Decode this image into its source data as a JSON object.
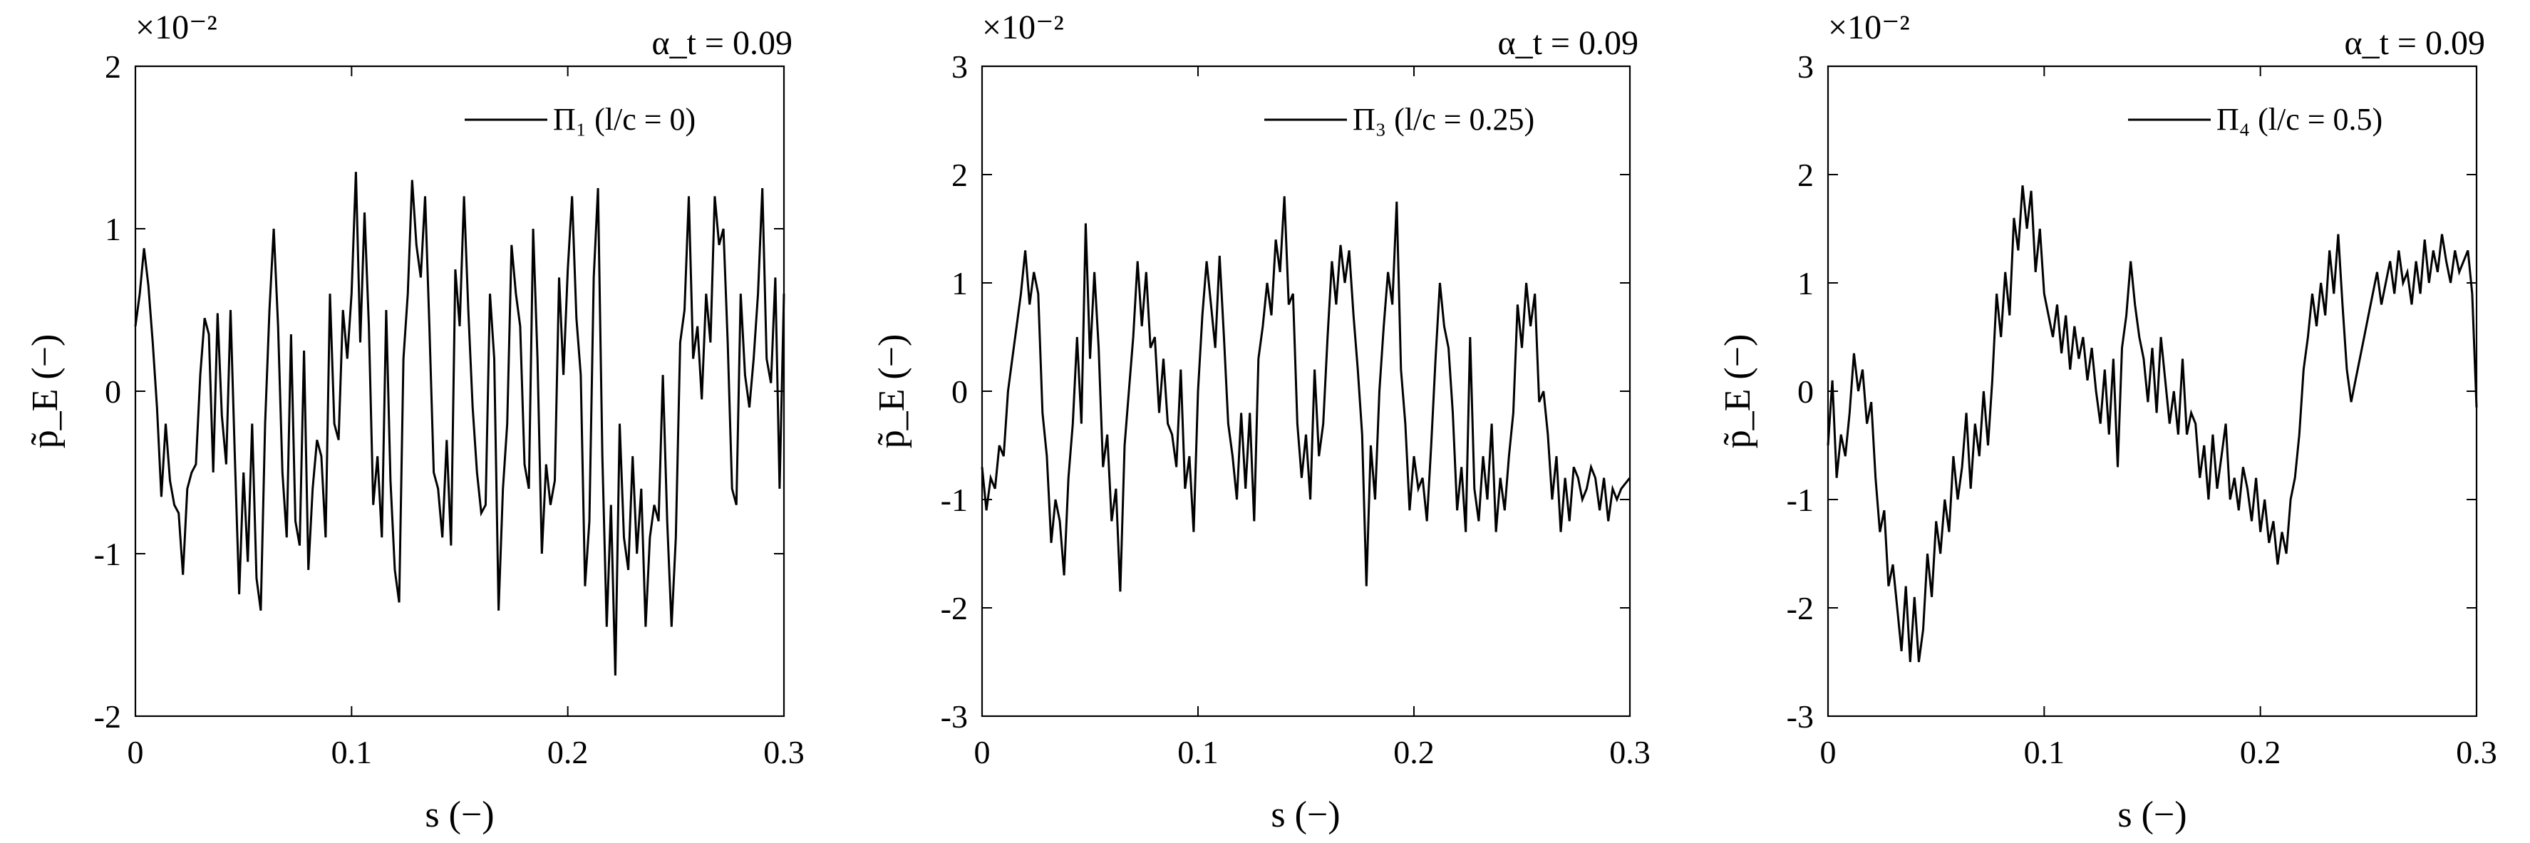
{
  "chart_data": [
    {
      "type": "line",
      "annotation": "α_t = 0.09",
      "exponent_label": "×10⁻²",
      "xlabel": "s (−)",
      "ylabel": "p̃_E (−)",
      "xlim": [
        0,
        0.3
      ],
      "ylim": [
        -2,
        2
      ],
      "xticks": [
        0,
        0.1,
        0.2,
        0.3
      ],
      "xtick_labels": [
        "0",
        "0.1",
        "0.2",
        "0.3"
      ],
      "yticks": [
        -2,
        -1,
        0,
        1,
        2
      ],
      "ytick_labels": [
        "-2",
        "-1",
        "0",
        "1",
        "2"
      ],
      "grid": false,
      "legend_position": "top-right",
      "series": [
        {
          "name": "Π₁ (l/c = 0)",
          "color": "#000000",
          "x": [
            0.0,
            0.002,
            0.004,
            0.006,
            0.008,
            0.01,
            0.012,
            0.014,
            0.016,
            0.018,
            0.02,
            0.022,
            0.024,
            0.026,
            0.028,
            0.03,
            0.032,
            0.034,
            0.036,
            0.038,
            0.04,
            0.042,
            0.044,
            0.046,
            0.048,
            0.05,
            0.052,
            0.054,
            0.056,
            0.058,
            0.06,
            0.062,
            0.064,
            0.066,
            0.068,
            0.07,
            0.072,
            0.074,
            0.076,
            0.078,
            0.08,
            0.082,
            0.084,
            0.086,
            0.088,
            0.09,
            0.092,
            0.094,
            0.096,
            0.098,
            0.1,
            0.102,
            0.104,
            0.106,
            0.108,
            0.11,
            0.112,
            0.114,
            0.116,
            0.118,
            0.12,
            0.122,
            0.124,
            0.126,
            0.128,
            0.13,
            0.132,
            0.134,
            0.136,
            0.138,
            0.14,
            0.142,
            0.144,
            0.146,
            0.148,
            0.15,
            0.152,
            0.154,
            0.156,
            0.158,
            0.16,
            0.162,
            0.164,
            0.166,
            0.168,
            0.17,
            0.172,
            0.174,
            0.176,
            0.178,
            0.18,
            0.182,
            0.184,
            0.186,
            0.188,
            0.19,
            0.192,
            0.194,
            0.196,
            0.198,
            0.2,
            0.202,
            0.204,
            0.206,
            0.208,
            0.21,
            0.212,
            0.214,
            0.216,
            0.218,
            0.22,
            0.222,
            0.224,
            0.226,
            0.228,
            0.23,
            0.232,
            0.234,
            0.236,
            0.238,
            0.24,
            0.242,
            0.244,
            0.246,
            0.248,
            0.25,
            0.252,
            0.254,
            0.256,
            0.258,
            0.26,
            0.262,
            0.264,
            0.266,
            0.268,
            0.27,
            0.272,
            0.274,
            0.276,
            0.278,
            0.28,
            0.282,
            0.284,
            0.286,
            0.288,
            0.29,
            0.292,
            0.294,
            0.296,
            0.298,
            0.3
          ],
          "y": [
            0.4,
            0.6,
            0.88,
            0.65,
            0.3,
            -0.1,
            -0.65,
            -0.2,
            -0.55,
            -0.7,
            -0.75,
            -1.13,
            -0.6,
            -0.5,
            -0.45,
            0.1,
            0.45,
            0.35,
            -0.5,
            0.48,
            -0.15,
            -0.45,
            0.5,
            -0.4,
            -1.25,
            -0.5,
            -1.05,
            -0.2,
            -1.15,
            -1.35,
            -0.2,
            0.5,
            1.0,
            0.4,
            -0.5,
            -0.9,
            0.35,
            -0.8,
            -0.95,
            0.25,
            -1.1,
            -0.6,
            -0.3,
            -0.4,
            -0.9,
            0.6,
            -0.2,
            -0.3,
            0.5,
            0.2,
            0.6,
            1.35,
            0.3,
            1.1,
            0.4,
            -0.7,
            -0.4,
            -0.9,
            0.5,
            -0.55,
            -1.1,
            -1.3,
            0.2,
            0.6,
            1.3,
            0.9,
            0.7,
            1.2,
            0.4,
            -0.5,
            -0.6,
            -0.9,
            -0.3,
            -0.95,
            0.75,
            0.4,
            1.2,
            0.5,
            -0.1,
            -0.5,
            -0.75,
            -0.7,
            0.6,
            0.2,
            -1.35,
            -0.6,
            -0.2,
            0.9,
            0.6,
            0.4,
            -0.45,
            -0.6,
            1.0,
            0.2,
            -1.0,
            -0.45,
            -0.7,
            -0.55,
            0.7,
            0.1,
            0.75,
            1.2,
            0.45,
            0.1,
            -1.2,
            -0.8,
            0.7,
            1.25,
            -0.4,
            -1.45,
            -0.7,
            -1.75,
            -0.2,
            -0.9,
            -1.1,
            -0.4,
            -1.0,
            -0.6,
            -1.45,
            -0.9,
            -0.7,
            -0.8,
            0.1,
            -0.8,
            -1.45,
            -0.9,
            0.3,
            0.5,
            1.2,
            0.2,
            0.4,
            -0.05,
            0.6,
            0.3,
            1.2,
            0.9,
            1.0,
            0.3,
            -0.6,
            -0.7,
            0.6,
            0.1,
            -0.1,
            0.2,
            0.6,
            1.25,
            0.2,
            0.05,
            0.7,
            -0.6,
            0.6
          ],
          "y_scale": 0.01
        }
      ]
    },
    {
      "type": "line",
      "annotation": "α_t = 0.09",
      "exponent_label": "×10⁻²",
      "xlabel": "s (−)",
      "ylabel": "p̃_E (−)",
      "xlim": [
        0,
        0.3
      ],
      "ylim": [
        -3,
        3
      ],
      "xticks": [
        0,
        0.1,
        0.2,
        0.3
      ],
      "xtick_labels": [
        "0",
        "0.1",
        "0.2",
        "0.3"
      ],
      "yticks": [
        -3,
        -2,
        -1,
        0,
        1,
        2,
        3
      ],
      "ytick_labels": [
        "-3",
        "-2",
        "-1",
        "0",
        "1",
        "2",
        "3"
      ],
      "grid": false,
      "legend_position": "top-right",
      "series": [
        {
          "name": "Π₃ (l/c = 0.25)",
          "color": "#000000",
          "x": [
            0.0,
            0.002,
            0.004,
            0.006,
            0.008,
            0.01,
            0.012,
            0.014,
            0.016,
            0.018,
            0.02,
            0.022,
            0.024,
            0.026,
            0.028,
            0.03,
            0.032,
            0.034,
            0.036,
            0.038,
            0.04,
            0.042,
            0.044,
            0.046,
            0.048,
            0.05,
            0.052,
            0.054,
            0.056,
            0.058,
            0.06,
            0.062,
            0.064,
            0.066,
            0.068,
            0.07,
            0.072,
            0.074,
            0.076,
            0.078,
            0.08,
            0.082,
            0.084,
            0.086,
            0.088,
            0.09,
            0.092,
            0.094,
            0.096,
            0.098,
            0.1,
            0.102,
            0.104,
            0.106,
            0.108,
            0.11,
            0.112,
            0.114,
            0.116,
            0.118,
            0.12,
            0.122,
            0.124,
            0.126,
            0.128,
            0.13,
            0.132,
            0.134,
            0.136,
            0.138,
            0.14,
            0.142,
            0.144,
            0.146,
            0.148,
            0.15,
            0.152,
            0.154,
            0.156,
            0.158,
            0.16,
            0.162,
            0.164,
            0.166,
            0.168,
            0.17,
            0.172,
            0.174,
            0.176,
            0.178,
            0.18,
            0.182,
            0.184,
            0.186,
            0.188,
            0.19,
            0.192,
            0.194,
            0.196,
            0.198,
            0.2,
            0.202,
            0.204,
            0.206,
            0.208,
            0.21,
            0.212,
            0.214,
            0.216,
            0.218,
            0.22,
            0.222,
            0.224,
            0.226,
            0.228,
            0.23,
            0.232,
            0.234,
            0.236,
            0.238,
            0.24,
            0.242,
            0.244,
            0.246,
            0.248,
            0.25,
            0.252,
            0.254,
            0.256,
            0.258,
            0.26,
            0.262,
            0.264,
            0.266,
            0.268,
            0.27,
            0.272,
            0.274,
            0.276,
            0.278,
            0.28,
            0.282,
            0.284,
            0.286,
            0.288,
            0.29,
            0.292,
            0.294,
            0.296,
            0.298,
            0.3
          ],
          "y": [
            -0.7,
            -1.1,
            -0.8,
            -0.9,
            -0.5,
            -0.6,
            0.0,
            0.3,
            0.6,
            0.9,
            1.3,
            0.8,
            1.1,
            0.9,
            -0.2,
            -0.6,
            -1.4,
            -1.0,
            -1.2,
            -1.7,
            -0.8,
            -0.3,
            0.5,
            -0.3,
            1.55,
            0.3,
            1.1,
            0.4,
            -0.7,
            -0.4,
            -1.2,
            -0.9,
            -1.85,
            -0.5,
            0.0,
            0.5,
            1.2,
            0.6,
            1.1,
            0.4,
            0.5,
            -0.2,
            0.3,
            -0.3,
            -0.4,
            -0.7,
            0.2,
            -0.9,
            -0.6,
            -1.3,
            0.0,
            0.7,
            1.2,
            0.8,
            0.4,
            1.25,
            0.5,
            -0.3,
            -0.6,
            -1.0,
            -0.2,
            -0.9,
            -0.2,
            -1.2,
            0.3,
            0.6,
            1.0,
            0.7,
            1.4,
            1.1,
            1.8,
            0.8,
            0.9,
            -0.3,
            -0.8,
            -0.4,
            -1.0,
            0.2,
            -0.6,
            -0.3,
            0.5,
            1.2,
            0.8,
            1.35,
            1.0,
            1.3,
            0.7,
            0.2,
            -0.4,
            -1.8,
            -0.5,
            -1.0,
            0.0,
            0.6,
            1.1,
            0.8,
            1.75,
            0.2,
            -0.3,
            -1.1,
            -0.6,
            -0.9,
            -0.8,
            -1.2,
            -0.5,
            0.3,
            1.0,
            0.6,
            0.4,
            -0.2,
            -1.1,
            -0.7,
            -1.3,
            0.5,
            -0.9,
            -1.2,
            -0.6,
            -1.0,
            -0.3,
            -1.3,
            -0.8,
            -1.1,
            -0.6,
            -0.2,
            0.8,
            0.4,
            1.0,
            0.6,
            0.9,
            -0.1,
            0.0,
            -0.4,
            -1.0,
            -0.6,
            -1.3,
            -0.8,
            -1.2,
            -0.7,
            -0.8,
            -1.0,
            -0.9,
            -0.7,
            -0.8,
            -1.1,
            -0.8,
            -1.2,
            -0.9,
            -1.0,
            -0.9,
            -0.85,
            -0.8
          ],
          "y_scale": 0.01
        }
      ]
    },
    {
      "type": "line",
      "annotation": "α_t = 0.09",
      "exponent_label": "×10⁻²",
      "xlabel": "s (−)",
      "ylabel": "p̃_E (−)",
      "xlim": [
        0,
        0.3
      ],
      "ylim": [
        -3,
        3
      ],
      "xticks": [
        0,
        0.1,
        0.2,
        0.3
      ],
      "xtick_labels": [
        "0",
        "0.1",
        "0.2",
        "0.3"
      ],
      "yticks": [
        -3,
        -2,
        -1,
        0,
        1,
        2,
        3
      ],
      "ytick_labels": [
        "-3",
        "-2",
        "-1",
        "0",
        "1",
        "2",
        "3"
      ],
      "grid": false,
      "legend_position": "top-right",
      "series": [
        {
          "name": "Π₄ (l/c = 0.5)",
          "color": "#000000",
          "x": [
            0.0,
            0.002,
            0.004,
            0.006,
            0.008,
            0.01,
            0.012,
            0.014,
            0.016,
            0.018,
            0.02,
            0.022,
            0.024,
            0.026,
            0.028,
            0.03,
            0.032,
            0.034,
            0.036,
            0.038,
            0.04,
            0.042,
            0.044,
            0.046,
            0.048,
            0.05,
            0.052,
            0.054,
            0.056,
            0.058,
            0.06,
            0.062,
            0.064,
            0.066,
            0.068,
            0.07,
            0.072,
            0.074,
            0.076,
            0.078,
            0.08,
            0.082,
            0.084,
            0.086,
            0.088,
            0.09,
            0.092,
            0.094,
            0.096,
            0.098,
            0.1,
            0.102,
            0.104,
            0.106,
            0.108,
            0.11,
            0.112,
            0.114,
            0.116,
            0.118,
            0.12,
            0.122,
            0.124,
            0.126,
            0.128,
            0.13,
            0.132,
            0.134,
            0.136,
            0.138,
            0.14,
            0.142,
            0.144,
            0.146,
            0.148,
            0.15,
            0.152,
            0.154,
            0.156,
            0.158,
            0.16,
            0.162,
            0.164,
            0.166,
            0.168,
            0.17,
            0.172,
            0.174,
            0.176,
            0.178,
            0.18,
            0.182,
            0.184,
            0.186,
            0.188,
            0.19,
            0.192,
            0.194,
            0.196,
            0.198,
            0.2,
            0.202,
            0.204,
            0.206,
            0.208,
            0.21,
            0.212,
            0.214,
            0.216,
            0.218,
            0.22,
            0.222,
            0.224,
            0.226,
            0.228,
            0.23,
            0.232,
            0.234,
            0.236,
            0.238,
            0.24,
            0.242,
            0.244,
            0.246,
            0.248,
            0.25,
            0.252,
            0.254,
            0.256,
            0.258,
            0.26,
            0.262,
            0.264,
            0.266,
            0.268,
            0.27,
            0.272,
            0.274,
            0.276,
            0.278,
            0.28,
            0.282,
            0.284,
            0.286,
            0.288,
            0.29,
            0.292,
            0.294,
            0.296,
            0.298,
            0.3
          ],
          "y": [
            -0.5,
            0.1,
            -0.8,
            -0.4,
            -0.6,
            -0.2,
            0.35,
            0.0,
            0.2,
            -0.3,
            -0.1,
            -0.8,
            -1.3,
            -1.1,
            -1.8,
            -1.6,
            -2.0,
            -2.4,
            -1.8,
            -2.5,
            -1.9,
            -2.5,
            -2.2,
            -1.5,
            -1.9,
            -1.2,
            -1.5,
            -1.0,
            -1.3,
            -0.6,
            -1.0,
            -0.7,
            -0.2,
            -0.9,
            -0.3,
            -0.6,
            0.0,
            -0.5,
            0.1,
            0.9,
            0.5,
            1.1,
            0.7,
            1.6,
            1.3,
            1.9,
            1.5,
            1.85,
            1.1,
            1.5,
            0.9,
            0.7,
            0.5,
            0.8,
            0.35,
            0.7,
            0.2,
            0.6,
            0.3,
            0.5,
            0.1,
            0.4,
            0.0,
            -0.3,
            0.2,
            -0.4,
            0.3,
            -0.7,
            0.4,
            0.7,
            1.2,
            0.8,
            0.5,
            0.3,
            -0.1,
            0.4,
            -0.2,
            0.5,
            0.1,
            -0.3,
            0.0,
            -0.4,
            0.3,
            -0.4,
            -0.2,
            -0.3,
            -0.8,
            -0.5,
            -1.0,
            -0.4,
            -0.9,
            -0.6,
            -0.3,
            -1.0,
            -0.8,
            -1.1,
            -0.7,
            -0.9,
            -1.2,
            -0.8,
            -1.3,
            -1.0,
            -1.4,
            -1.2,
            -1.6,
            -1.3,
            -1.5,
            -1.0,
            -0.8,
            -0.4,
            0.2,
            0.5,
            0.9,
            0.6,
            1.0,
            0.7,
            1.3,
            0.9,
            1.45,
            0.8,
            0.2,
            -0.1,
            0.1,
            0.3,
            0.5,
            0.7,
            0.9,
            1.1,
            0.8,
            1.0,
            1.2,
            0.9,
            1.3,
            1.0,
            1.1,
            0.8,
            1.2,
            0.9,
            1.4,
            1.0,
            1.3,
            1.1,
            1.45,
            1.2,
            1.0,
            1.3,
            1.1,
            1.2,
            1.3,
            0.9,
            -0.15
          ],
          "y_scale": 0.01
        }
      ]
    }
  ]
}
